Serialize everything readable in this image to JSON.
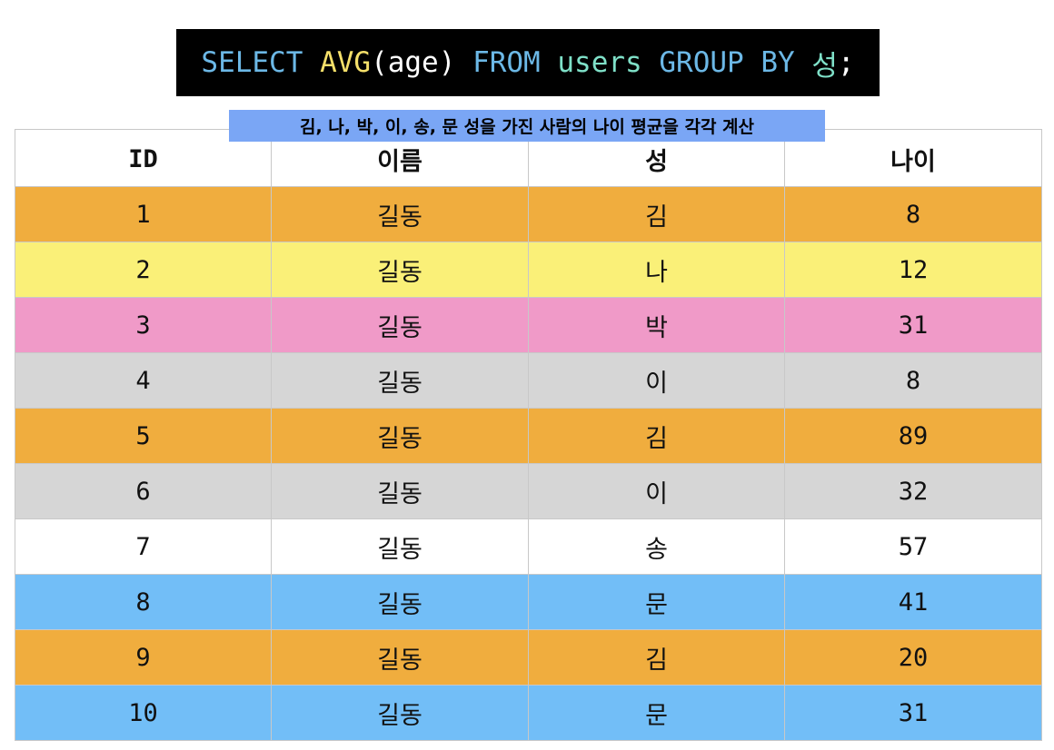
{
  "query": {
    "select": "SELECT",
    "fn": "AVG",
    "args": "(age)",
    "from": "FROM",
    "table": "users",
    "group_by": "GROUP BY",
    "column": "성",
    "end": ";"
  },
  "caption": "김, 나, 박, 이, 송, 문 성을 가진 사람의 나이 평균을 각각 계산",
  "table": {
    "headers": [
      "ID",
      "이름",
      "성",
      "나이"
    ],
    "rows": [
      {
        "id": "1",
        "name": "길동",
        "surname": "김",
        "age": "8",
        "color": "#f0ad3e"
      },
      {
        "id": "2",
        "name": "길동",
        "surname": "나",
        "age": "12",
        "color": "#faf078"
      },
      {
        "id": "3",
        "name": "길동",
        "surname": "박",
        "age": "31",
        "color": "#f09ac8"
      },
      {
        "id": "4",
        "name": "길동",
        "surname": "이",
        "age": "8",
        "color": "#d6d6d6"
      },
      {
        "id": "5",
        "name": "길동",
        "surname": "김",
        "age": "89",
        "color": "#f0ad3e"
      },
      {
        "id": "6",
        "name": "길동",
        "surname": "이",
        "age": "32",
        "color": "#d6d6d6"
      },
      {
        "id": "7",
        "name": "길동",
        "surname": "송",
        "age": "57",
        "color": "#ffffff"
      },
      {
        "id": "8",
        "name": "길동",
        "surname": "문",
        "age": "41",
        "color": "#72bef7"
      },
      {
        "id": "9",
        "name": "길동",
        "surname": "김",
        "age": "20",
        "color": "#f0ad3e"
      },
      {
        "id": "10",
        "name": "길동",
        "surname": "문",
        "age": "31",
        "color": "#72bef7"
      }
    ]
  }
}
